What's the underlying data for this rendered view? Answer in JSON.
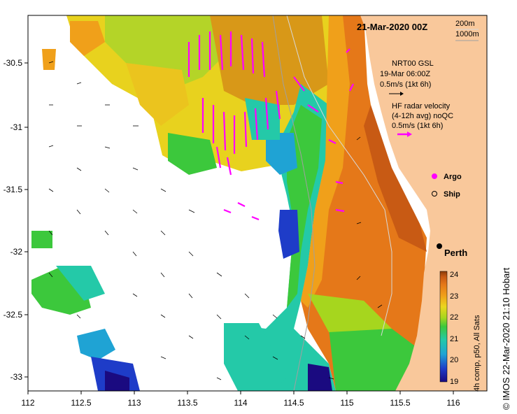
{
  "title": "21-Mar-2020 00Z",
  "contours": {
    "c1": "200m",
    "c2": "1000m"
  },
  "model_legend": {
    "name": "NRT00 GSL",
    "time": "19-Mar 06:00Z",
    "scale": "0.5m/s (1kt 6h)"
  },
  "radar_legend": {
    "line1": "HF radar velocity",
    "line2": "(4-12h avg) noQC",
    "scale": "0.5m/s (1kt 6h)"
  },
  "markers": {
    "argo": "Argo",
    "ship": "Ship"
  },
  "city": "Perth",
  "x_ticks": [
    "112",
    "112.5",
    "113",
    "113.5",
    "114",
    "114.5",
    "115",
    "115.5",
    "116"
  ],
  "y_ticks": [
    "-30.5",
    "-31",
    "-31.5",
    "-32",
    "-32.5",
    "-33"
  ],
  "colorbar": {
    "ticks": [
      "24",
      "23",
      "22",
      "21",
      "20",
      "19"
    ],
    "label": "4h comp, p50, All Sats"
  },
  "credit": "© IMOS 22-Mar-2020 21:10 Hobart",
  "colors": {
    "land": "#f9c89b",
    "radar_arrow": "#ff00ff",
    "sst_scale": [
      "#1a0a80",
      "#1e3cc8",
      "#1fa3d4",
      "#24c9a8",
      "#3cc83c",
      "#a6d61e",
      "#ebd61e",
      "#f0a01a",
      "#e57819",
      "#c85a14",
      "#8c3c0a"
    ]
  }
}
